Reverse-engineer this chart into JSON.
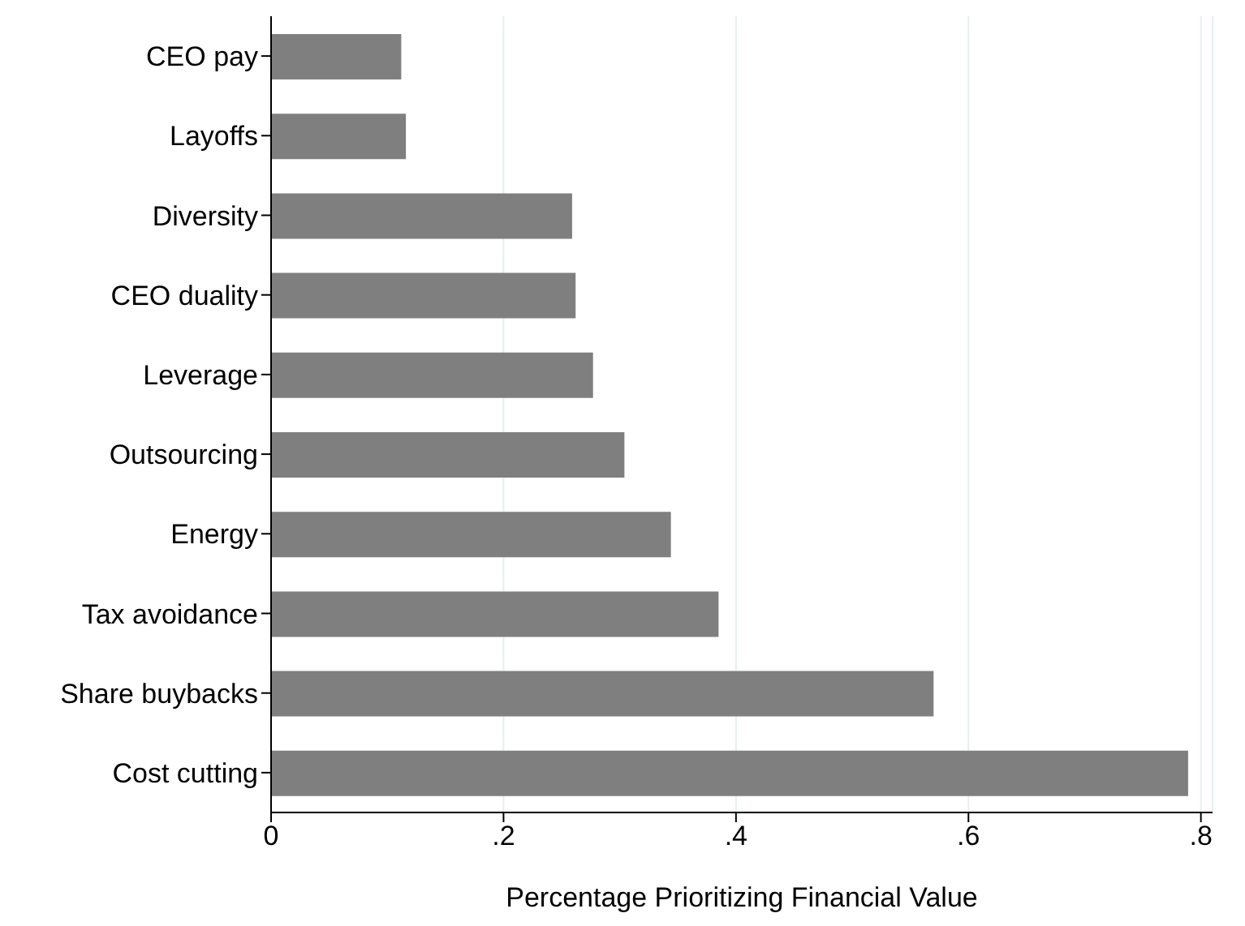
{
  "chart_data": {
    "type": "bar",
    "orientation": "horizontal",
    "xlabel": "Percentage Prioritizing Financial Value",
    "categories": [
      "CEO pay",
      "Layoffs",
      "Diversity",
      "CEO duality",
      "Leverage",
      "Outsourcing",
      "Energy",
      "Tax avoidance",
      "Share buybacks",
      "Cost cutting"
    ],
    "values": [
      0.112,
      0.116,
      0.259,
      0.262,
      0.277,
      0.304,
      0.344,
      0.385,
      0.57,
      0.789
    ],
    "color": "#7f7f7f",
    "xlim": [
      0,
      0.81
    ],
    "xticks": [
      0,
      {
        "value": 0.2,
        "label": ".2"
      },
      {
        "value": 0.4,
        "label": ".4"
      },
      {
        "value": 0.6,
        "label": ".6"
      },
      {
        "value": 0.8,
        "label": ".8"
      }
    ],
    "grid": "x",
    "legend": false
  }
}
